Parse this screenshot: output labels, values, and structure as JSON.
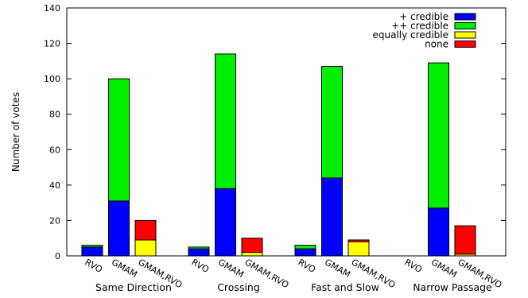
{
  "chart_data": {
    "type": "bar",
    "stacked": true,
    "ylabel": "Number of votes",
    "xlabel": "",
    "ylim": [
      0,
      140
    ],
    "yticks": [
      0,
      20,
      40,
      60,
      80,
      100,
      120,
      140
    ],
    "grid": false,
    "legend_position": "top-right",
    "groups": [
      "Same Direction",
      "Crossing",
      "Fast and Slow",
      "Narrow Passage"
    ],
    "bar_labels": [
      "RVO",
      "GMAM",
      "GMAM,RVO"
    ],
    "series": [
      {
        "name": "+ credible",
        "color": "#0000ff",
        "values": [
          [
            5,
            31,
            0
          ],
          [
            4,
            38,
            0
          ],
          [
            4,
            44,
            0
          ],
          [
            0,
            27,
            0
          ]
        ]
      },
      {
        "name": "++ credible",
        "color": "#00ee00",
        "values": [
          [
            1,
            69,
            0
          ],
          [
            1,
            76,
            0
          ],
          [
            2,
            63,
            0
          ],
          [
            0,
            82,
            0
          ]
        ]
      },
      {
        "name": "equally credible",
        "color": "#ffff00",
        "values": [
          [
            0,
            0,
            9
          ],
          [
            0,
            0,
            2
          ],
          [
            0,
            0,
            8
          ],
          [
            0,
            0,
            1
          ]
        ]
      },
      {
        "name": "none",
        "color": "#ff0000",
        "values": [
          [
            0,
            0,
            11
          ],
          [
            0,
            0,
            8
          ],
          [
            0,
            0,
            1
          ],
          [
            0,
            0,
            16
          ]
        ]
      }
    ]
  }
}
